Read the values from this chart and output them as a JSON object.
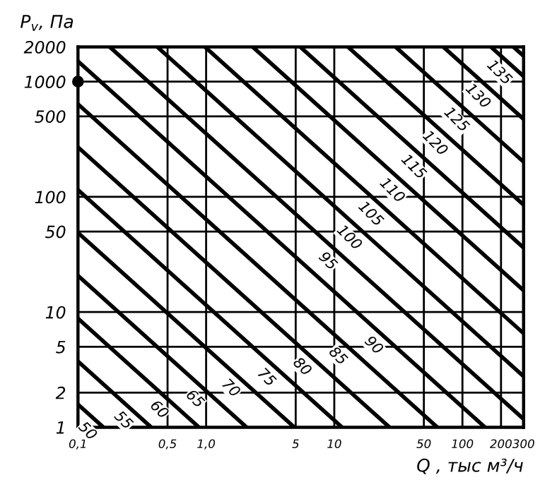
{
  "chart_data": {
    "type": "line",
    "xlabel": "Q , тыс м³/ч",
    "ylabel": "P$_{v}$, Па",
    "log": "xy",
    "grid": true,
    "legend": false,
    "line_style": "solid",
    "marker": "none",
    "xlim": [
      0.1,
      300
    ],
    "ylim": [
      1,
      2000
    ],
    "xticks": [
      {
        "value": 0.1,
        "label": "0,1"
      },
      {
        "value": 0.5,
        "label": "0,5"
      },
      {
        "value": 1,
        "label": "1,0"
      },
      5,
      10,
      50,
      100,
      200,
      300
    ],
    "yticks": [
      1,
      2,
      5,
      10,
      50,
      100,
      500,
      1000,
      2000
    ],
    "series": [
      {
        "name": "50",
        "color": "#000000",
        "x": [
          0.1,
          0.158
        ],
        "values": [
          1.58,
          1
        ]
      },
      {
        "name": "55",
        "color": "#000000",
        "x": [
          0.1,
          0.373
        ],
        "values": [
          3.73,
          1
        ]
      },
      {
        "name": "60",
        "color": "#000000",
        "x": [
          0.1,
          0.879
        ],
        "values": [
          8.79,
          1
        ]
      },
      {
        "name": "65",
        "color": "#000000",
        "x": [
          0.1,
          2.07
        ],
        "values": [
          20.7,
          1
        ]
      },
      {
        "name": "70",
        "color": "#000000",
        "x": [
          0.1,
          4.88
        ],
        "values": [
          48.8,
          1
        ]
      },
      {
        "name": "75",
        "color": "#000000",
        "x": [
          0.1,
          11.5
        ],
        "values": [
          115,
          1
        ]
      },
      {
        "name": "80",
        "color": "#000000",
        "x": [
          0.1,
          27
        ],
        "values": [
          270,
          1
        ]
      },
      {
        "name": "85",
        "color": "#000000",
        "x": [
          0.1,
          63.7
        ],
        "values": [
          637,
          1
        ]
      },
      {
        "name": "90",
        "color": "#000000",
        "x": [
          0.1,
          150
        ],
        "values": [
          1500,
          1
        ]
      },
      {
        "name": "95",
        "color": "#000000",
        "x": [
          0.177,
          300
        ],
        "values": [
          2000,
          1.18
        ]
      },
      {
        "name": "100",
        "color": "#000000",
        "x": [
          0.416,
          300
        ],
        "values": [
          2000,
          2.77
        ]
      },
      {
        "name": "105",
        "color": "#000000",
        "x": [
          0.98,
          300
        ],
        "values": [
          2000,
          6.53
        ]
      },
      {
        "name": "110",
        "color": "#000000",
        "x": [
          2.31,
          300
        ],
        "values": [
          2000,
          15.4
        ]
      },
      {
        "name": "115",
        "color": "#000000",
        "x": [
          5.43,
          300
        ],
        "values": [
          2000,
          36.2
        ]
      },
      {
        "name": "120",
        "color": "#000000",
        "x": [
          12.8,
          300
        ],
        "values": [
          2000,
          85.3
        ]
      },
      {
        "name": "125",
        "color": "#000000",
        "x": [
          30.1,
          300
        ],
        "values": [
          2000,
          201
        ]
      },
      {
        "name": "130",
        "color": "#000000",
        "x": [
          71,
          300
        ],
        "values": [
          2000,
          473
        ]
      },
      {
        "name": "135",
        "color": "#000000",
        "x": [
          167,
          300
        ],
        "values": [
          2000,
          1114
        ]
      },
      {
        "color": "#000000",
        "x": [
          250,
          300
        ],
        "values": [
          2000,
          1670
        ]
      },
      {
        "type": "scatter",
        "marker": "circle",
        "color": "#000000",
        "x": [
          0.1
        ],
        "values": [
          1000
        ]
      }
    ]
  }
}
